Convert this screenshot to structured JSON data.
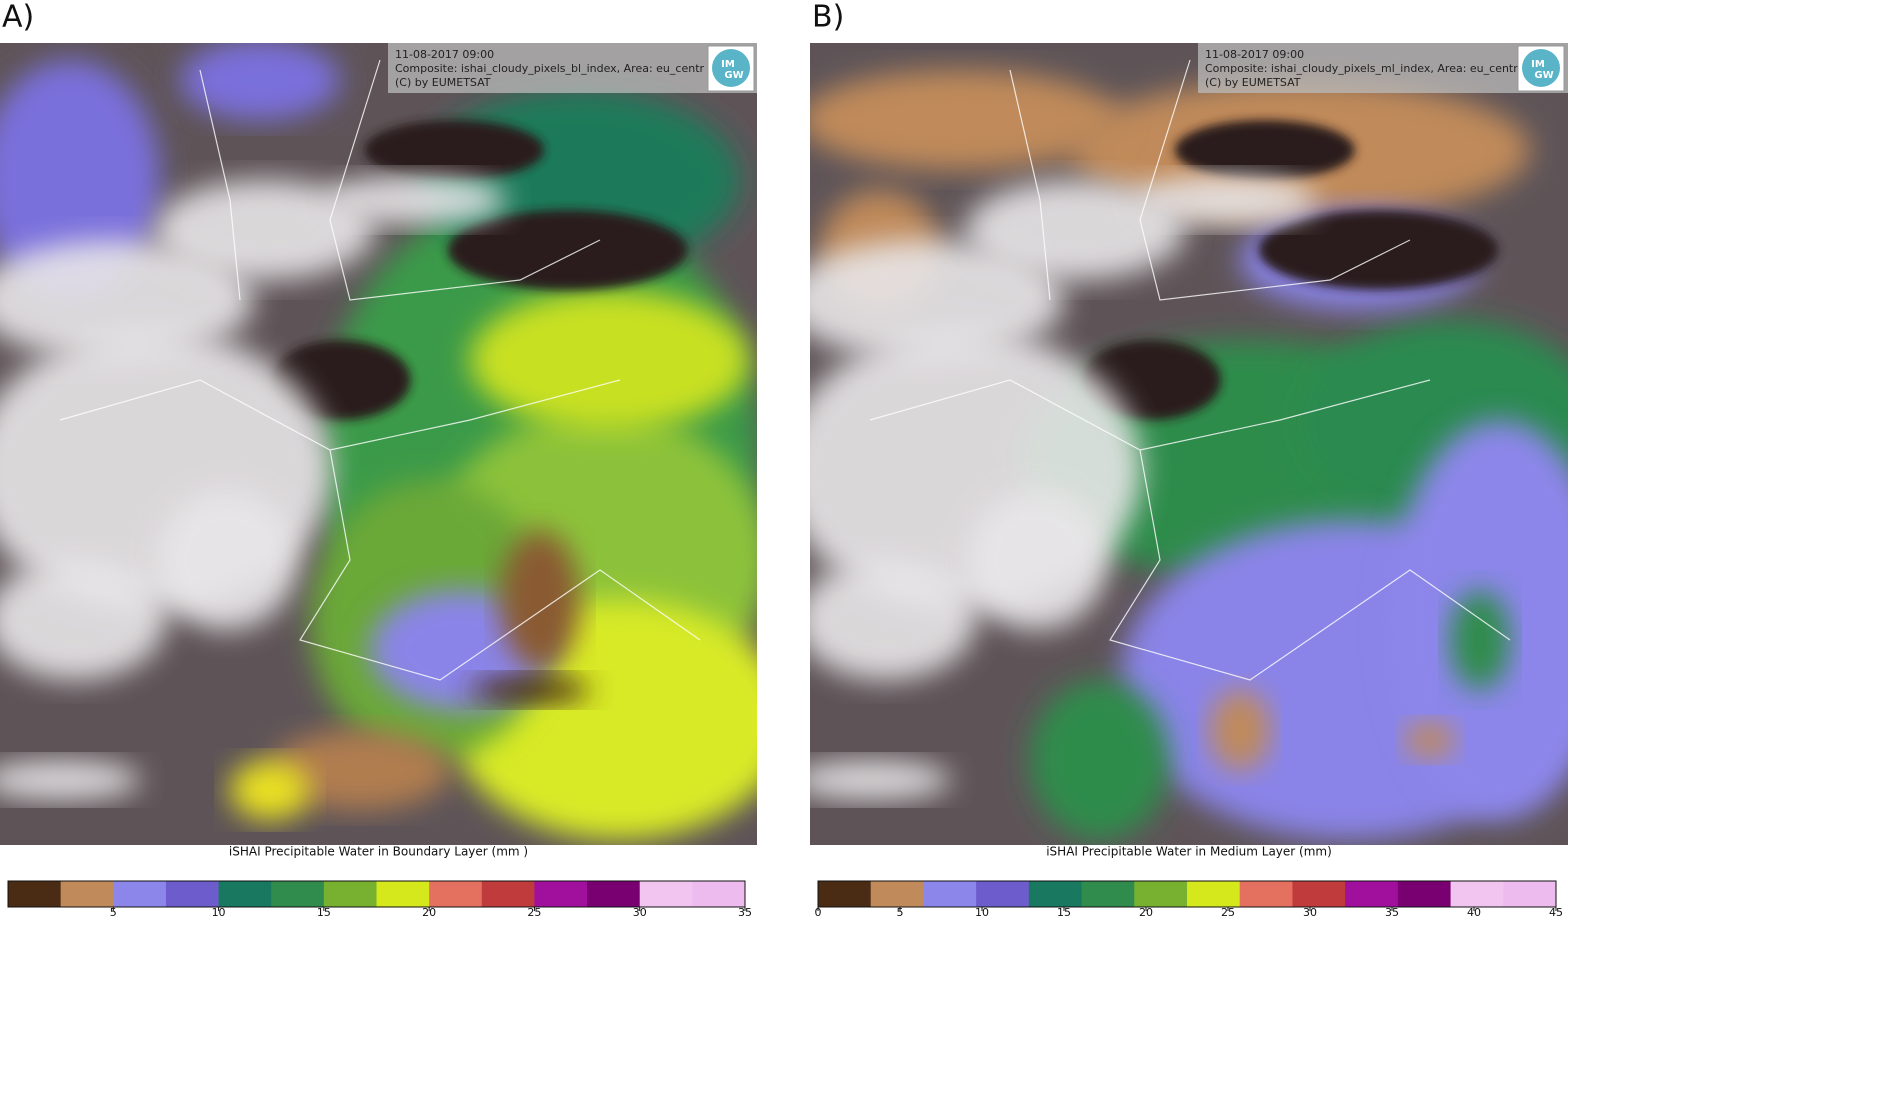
{
  "panels": [
    {
      "label": "A)",
      "overlay": [
        "11-08-2017 09:00",
        "Composite: ishai_cloudy_pixels_bl_index, Area: eu_centr",
        "(C) by EUMETSAT"
      ],
      "logo": [
        "IM",
        "GW"
      ],
      "caption": "iSHAI Precipitable Water in Boundary Layer (mm )",
      "colorbar": {
        "clim": [
          0,
          35
        ],
        "ticks": [
          5,
          10,
          15,
          20,
          25,
          30,
          35
        ],
        "colors": [
          "#4a2c14",
          "#c08a5a",
          "#8c86ea",
          "#6c5ccc",
          "#187860",
          "#2f8c4c",
          "#78b030",
          "#d4e81c",
          "#e47060",
          "#c03c3c",
          "#a0109c",
          "#780070",
          "#f2c4f0",
          "#eebbee"
        ]
      }
    },
    {
      "label": "B)",
      "overlay": [
        "11-08-2017 09:00",
        "Composite: ishai_cloudy_pixels_ml_index, Area: eu_centr",
        "(C) by EUMETSAT"
      ],
      "logo": [
        "IM",
        "GW"
      ],
      "caption": "iSHAI Precipitable Water in Medium Layer (mm)",
      "colorbar": {
        "clim": [
          0,
          45
        ],
        "ticks": [
          0,
          5,
          10,
          15,
          20,
          25,
          30,
          35,
          40,
          45
        ],
        "colors": [
          "#4a2c14",
          "#c08a5a",
          "#8c86ea",
          "#6c5ccc",
          "#187860",
          "#2f8c4c",
          "#78b030",
          "#d4e81c",
          "#e47060",
          "#c03c3c",
          "#a0109c",
          "#780070",
          "#f2c4f0",
          "#eebbee"
        ]
      }
    }
  ]
}
